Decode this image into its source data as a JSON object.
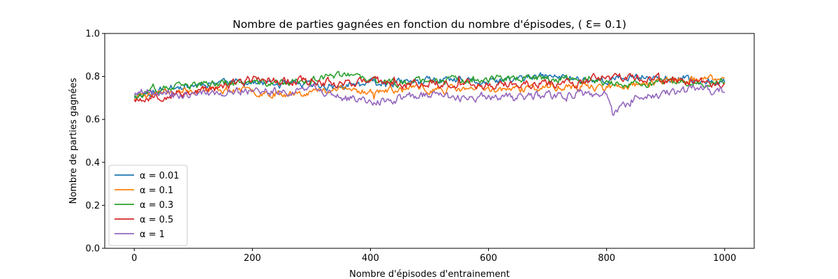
{
  "chart_data": {
    "type": "line",
    "title": "Nombre de parties gagnées en fonction du nombre d'épisodes, ( Ɛ= 0.1)",
    "xlabel": "Nombre d'épisodes d'entrainement",
    "ylabel": "Nombre de parties gagnées",
    "xlim": [
      -50,
      1050
    ],
    "ylim": [
      0.0,
      1.0
    ],
    "xticks": [
      0,
      200,
      400,
      600,
      800,
      1000
    ],
    "yticks": [
      0.0,
      0.2,
      0.4,
      0.6,
      0.8,
      1.0
    ],
    "grid": false,
    "legend_position": "lower-left",
    "series": [
      {
        "name": "α = 0.01",
        "color": "#1f77b4",
        "seed": 11,
        "amp": 0.014,
        "x": [
          0,
          50,
          100,
          150,
          200,
          250,
          300,
          350,
          400,
          450,
          500,
          550,
          600,
          650,
          700,
          750,
          800,
          850,
          900,
          950,
          1000
        ],
        "values": [
          0.71,
          0.74,
          0.76,
          0.78,
          0.77,
          0.76,
          0.76,
          0.75,
          0.77,
          0.77,
          0.78,
          0.78,
          0.77,
          0.79,
          0.8,
          0.79,
          0.78,
          0.8,
          0.79,
          0.78,
          0.78
        ]
      },
      {
        "name": "α = 0.1",
        "color": "#ff7f0e",
        "seed": 23,
        "amp": 0.014,
        "x": [
          0,
          50,
          100,
          150,
          200,
          250,
          300,
          350,
          400,
          450,
          500,
          550,
          600,
          650,
          700,
          750,
          800,
          850,
          900,
          950,
          1000
        ],
        "values": [
          0.7,
          0.73,
          0.74,
          0.74,
          0.73,
          0.72,
          0.73,
          0.74,
          0.73,
          0.74,
          0.74,
          0.74,
          0.74,
          0.74,
          0.75,
          0.75,
          0.75,
          0.76,
          0.78,
          0.78,
          0.79
        ]
      },
      {
        "name": "α = 0.3",
        "color": "#2ca02c",
        "seed": 37,
        "amp": 0.014,
        "x": [
          0,
          50,
          100,
          150,
          200,
          250,
          300,
          350,
          400,
          450,
          500,
          550,
          600,
          650,
          700,
          750,
          800,
          850,
          900,
          950,
          1000
        ],
        "values": [
          0.71,
          0.74,
          0.76,
          0.77,
          0.77,
          0.77,
          0.78,
          0.81,
          0.78,
          0.77,
          0.79,
          0.78,
          0.79,
          0.79,
          0.79,
          0.79,
          0.77,
          0.76,
          0.77,
          0.76,
          0.78
        ]
      },
      {
        "name": "α = 0.5",
        "color": "#d62728",
        "seed": 53,
        "amp": 0.016,
        "x": [
          0,
          50,
          100,
          150,
          200,
          250,
          300,
          350,
          400,
          450,
          500,
          550,
          600,
          650,
          700,
          750,
          800,
          850,
          900,
          950,
          1000
        ],
        "values": [
          0.7,
          0.71,
          0.73,
          0.75,
          0.79,
          0.78,
          0.78,
          0.77,
          0.78,
          0.76,
          0.77,
          0.77,
          0.76,
          0.76,
          0.77,
          0.77,
          0.8,
          0.79,
          0.78,
          0.78,
          0.76
        ]
      },
      {
        "name": "α = 1",
        "color": "#9467bd",
        "seed": 71,
        "amp": 0.016,
        "x": [
          0,
          50,
          100,
          150,
          200,
          250,
          300,
          350,
          400,
          450,
          500,
          550,
          600,
          650,
          700,
          750,
          800,
          810,
          830,
          850,
          900,
          950,
          1000
        ],
        "values": [
          0.72,
          0.72,
          0.72,
          0.72,
          0.73,
          0.73,
          0.74,
          0.7,
          0.68,
          0.7,
          0.71,
          0.7,
          0.71,
          0.7,
          0.71,
          0.72,
          0.72,
          0.63,
          0.66,
          0.7,
          0.72,
          0.74,
          0.73
        ]
      }
    ]
  }
}
